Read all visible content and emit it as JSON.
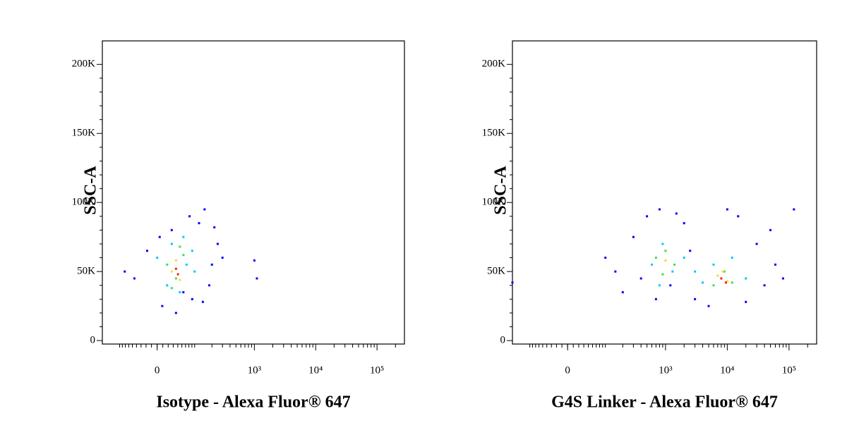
{
  "chart_data": [
    {
      "type": "scatter",
      "xlabel": "Isotype - Alexa Fluor® 647",
      "ylabel": "SSC-A",
      "xscale": "biexponential",
      "xlim": [
        -200,
        280000
      ],
      "ylim": [
        -2500,
        217000
      ],
      "xticks": [
        0,
        {
          "value": 1000,
          "label": "10³"
        },
        {
          "value": 10000,
          "label": "10⁴"
        },
        {
          "value": 100000,
          "label": "10⁵"
        }
      ],
      "yticks": [
        0,
        {
          "value": 50000,
          "label": "50K"
        },
        {
          "value": 100000,
          "label": "100K"
        },
        {
          "value": 150000,
          "label": "150K"
        },
        {
          "value": 200000,
          "label": "200K"
        }
      ],
      "series": [
        {
          "color": "#0000ff",
          "x": [
            -50,
            10,
            80,
            150,
            250,
            300,
            -20,
            40,
            120,
            200,
            1000,
            1100,
            60,
            5,
            180,
            90,
            -80,
            30,
            220,
            140
          ],
          "values": [
            45000,
            25000,
            90000,
            95000,
            70000,
            60000,
            65000,
            20000,
            85000,
            55000,
            58000,
            45000,
            35000,
            75000,
            40000,
            30000,
            50000,
            80000,
            82000,
            28000
          ]
        },
        {
          "color": "#00c8ff",
          "x": [
            0,
            30,
            60,
            90,
            20,
            50,
            70,
            100
          ],
          "values": [
            60000,
            70000,
            75000,
            65000,
            40000,
            35000,
            55000,
            50000
          ]
        },
        {
          "color": "#3ce050",
          "x": [
            20,
            40,
            60,
            30,
            50
          ],
          "values": [
            55000,
            45000,
            62000,
            38000,
            68000
          ]
        },
        {
          "color": "#f0e020",
          "x": [
            30,
            50,
            40
          ],
          "values": [
            50000,
            44000,
            58000
          ]
        },
        {
          "color": "#ff2000",
          "x": [
            40,
            45
          ],
          "values": [
            52000,
            48000
          ]
        }
      ]
    },
    {
      "type": "scatter",
      "xlabel": "G4S Linker - Alexa Fluor® 647",
      "ylabel": "SSC-A",
      "xscale": "biexponential",
      "xlim": [
        -200,
        280000
      ],
      "ylim": [
        -2500,
        217000
      ],
      "xticks": [
        0,
        {
          "value": 1000,
          "label": "10³"
        },
        {
          "value": 10000,
          "label": "10⁴"
        },
        {
          "value": 100000,
          "label": "10⁵"
        }
      ],
      "yticks": [
        0,
        {
          "value": 50000,
          "label": "50K"
        },
        {
          "value": 100000,
          "label": "100K"
        },
        {
          "value": 150000,
          "label": "150K"
        },
        {
          "value": 200000,
          "label": "200K"
        }
      ],
      "series": [
        {
          "color": "#0000ff",
          "x": [
            -200,
            100,
            300,
            500,
            800,
            2000,
            3000,
            5000,
            15000,
            30000,
            60000,
            120000,
            200,
            400,
            1500,
            2500,
            20000,
            40000,
            700,
            10000,
            50000,
            150,
            80000,
            1200
          ],
          "values": [
            42000,
            60000,
            75000,
            90000,
            95000,
            85000,
            30000,
            25000,
            90000,
            70000,
            55000,
            95000,
            35000,
            45000,
            92000,
            65000,
            28000,
            40000,
            30000,
            95000,
            80000,
            50000,
            45000,
            40000
          ]
        },
        {
          "color": "#00c8ff",
          "x": [
            600,
            900,
            1300,
            2000,
            4000,
            6000,
            12000,
            20000,
            800,
            3000
          ],
          "values": [
            55000,
            70000,
            50000,
            60000,
            42000,
            55000,
            60000,
            45000,
            40000,
            50000
          ]
        },
        {
          "color": "#3ce050",
          "x": [
            700,
            1000,
            1400,
            6000,
            9000,
            12000,
            900
          ],
          "values": [
            60000,
            65000,
            55000,
            40000,
            50000,
            42000,
            48000
          ]
        },
        {
          "color": "#f0e020",
          "x": [
            1000,
            7000,
            10000,
            8500
          ],
          "values": [
            58000,
            47000,
            43000,
            50000
          ]
        },
        {
          "color": "#ff2000",
          "x": [
            8000,
            9500
          ],
          "values": [
            45000,
            42000
          ]
        }
      ]
    }
  ]
}
